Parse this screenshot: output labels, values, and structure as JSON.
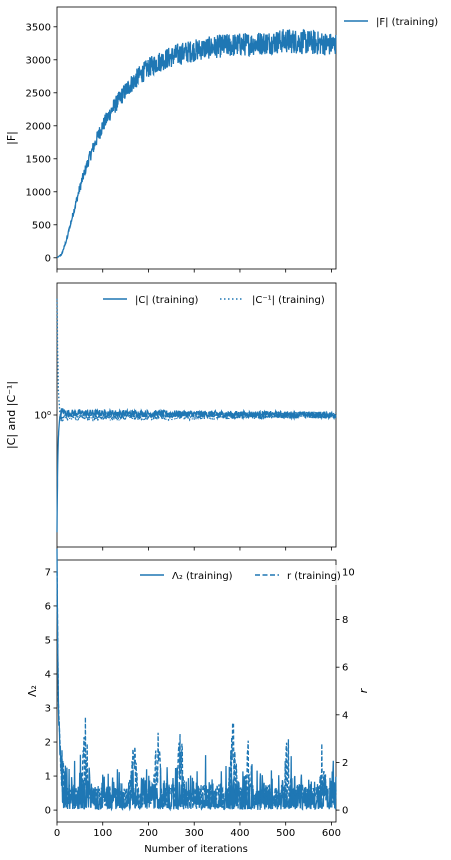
{
  "chart_data": [
    {
      "type": "line",
      "ylabel": "|F|",
      "xlabel": "",
      "xlim": [
        0,
        610
      ],
      "ylim": [
        -170,
        3800
      ],
      "yticks": [
        0,
        500,
        1000,
        1500,
        2000,
        2500,
        3000,
        3500
      ],
      "ytick_labels": [
        "0",
        "500",
        "1000",
        "1500",
        "2000",
        "2500",
        "3000",
        "3500"
      ],
      "xticks": [
        0,
        100,
        200,
        300,
        400,
        500,
        600
      ],
      "legend_placement": "outside-top-right",
      "color": "#1f77b4",
      "series": [
        {
          "name": "|F| (training)",
          "line_style": "solid",
          "x": [
            0,
            10,
            20,
            30,
            40,
            50,
            60,
            70,
            80,
            90,
            100,
            120,
            140,
            160,
            180,
            200,
            220,
            240,
            260,
            280,
            300,
            320,
            340,
            360,
            380,
            400,
            420,
            440,
            460,
            480,
            500,
            520,
            540,
            560,
            580,
            600,
            610
          ],
          "values": [
            0,
            50,
            250,
            520,
            800,
            1060,
            1290,
            1500,
            1680,
            1850,
            2000,
            2240,
            2440,
            2620,
            2760,
            2880,
            2960,
            3020,
            3070,
            3110,
            3140,
            3170,
            3190,
            3210,
            3220,
            3230,
            3240,
            3250,
            3260,
            3270,
            3290,
            3280,
            3270,
            3260,
            3250,
            3230,
            3230
          ],
          "noise_amplitude": [
            0,
            10,
            20,
            40,
            60,
            70,
            80,
            90,
            100,
            110,
            110,
            120,
            130,
            140,
            150,
            150,
            160,
            160,
            170,
            170,
            170,
            170,
            170,
            180,
            180,
            180,
            180,
            180,
            180,
            180,
            190,
            190,
            190,
            190,
            180,
            180,
            180
          ]
        }
      ]
    },
    {
      "type": "line",
      "ylabel": "|C| and |C⁻¹|",
      "xlabel": "",
      "yscale": "log",
      "xlim": [
        0,
        610
      ],
      "ylim": [
        0.05,
        20
      ],
      "yticks": [
        1
      ],
      "ytick_labels": [
        "10⁰"
      ],
      "xticks": [
        0,
        100,
        200,
        300,
        400,
        500,
        600
      ],
      "legend_placement": "top-right",
      "color": "#1f77b4",
      "series": [
        {
          "name": "|C| (training)",
          "line_style": "solid",
          "x": [
            0,
            1,
            3,
            6,
            10,
            20,
            610
          ],
          "values": [
            0.07,
            0.2,
            0.6,
            0.95,
            1.1,
            1.05,
            1.0
          ],
          "noise_ratio": 0.08
        },
        {
          "name": "|C⁻¹| (training)",
          "line_style": "dotted",
          "x": [
            0,
            1,
            3,
            6,
            10,
            20,
            610
          ],
          "values": [
            14,
            5,
            1.7,
            1.05,
            0.91,
            0.95,
            1.0
          ],
          "noise_ratio": 0.08
        }
      ]
    },
    {
      "type": "line",
      "ylabel": "Λ₂",
      "y2label": "r",
      "xlabel": "Number of iterations",
      "xlim": [
        0,
        610
      ],
      "ylim": [
        -0.35,
        7.35
      ],
      "y2lim": [
        -0.5,
        10.5
      ],
      "yticks": [
        0,
        1,
        2,
        3,
        4,
        5,
        6,
        7
      ],
      "ytick_labels": [
        "0",
        "1",
        "2",
        "3",
        "4",
        "5",
        "6",
        "7"
      ],
      "y2ticks": [
        0,
        2,
        4,
        6,
        8,
        10
      ],
      "y2tick_labels": [
        "0",
        "2",
        "4",
        "6",
        "8",
        "10"
      ],
      "xticks": [
        0,
        100,
        200,
        300,
        400,
        500,
        600
      ],
      "xtick_labels": [
        "0",
        "100",
        "200",
        "300",
        "400",
        "500",
        "600"
      ],
      "legend_placement": "top-right",
      "color": "#1f77b4",
      "series": [
        {
          "name": "Λ₂ (training)",
          "axis": "left",
          "line_style": "solid",
          "x": [
            0,
            3,
            8,
            15,
            30,
            610
          ],
          "values": [
            7.2,
            3.0,
            1.2,
            0.6,
            0.5,
            0.5
          ],
          "spike_max": 1.4
        },
        {
          "name": "r (training)",
          "axis": "right",
          "line_style": "dashed",
          "x": [
            0,
            3,
            8,
            15,
            30,
            610
          ],
          "values": [
            10,
            4.5,
            2.2,
            1.2,
            1.0,
            1.0
          ],
          "peaks": [
            [
              8,
              3.2
            ],
            [
              62,
              3.9
            ],
            [
              168,
              3.1
            ],
            [
              220,
              3.5
            ],
            [
              270,
              3.6
            ],
            [
              385,
              3.9
            ],
            [
              420,
              3.2
            ],
            [
              505,
              3.6
            ],
            [
              580,
              3.0
            ]
          ]
        }
      ]
    }
  ]
}
